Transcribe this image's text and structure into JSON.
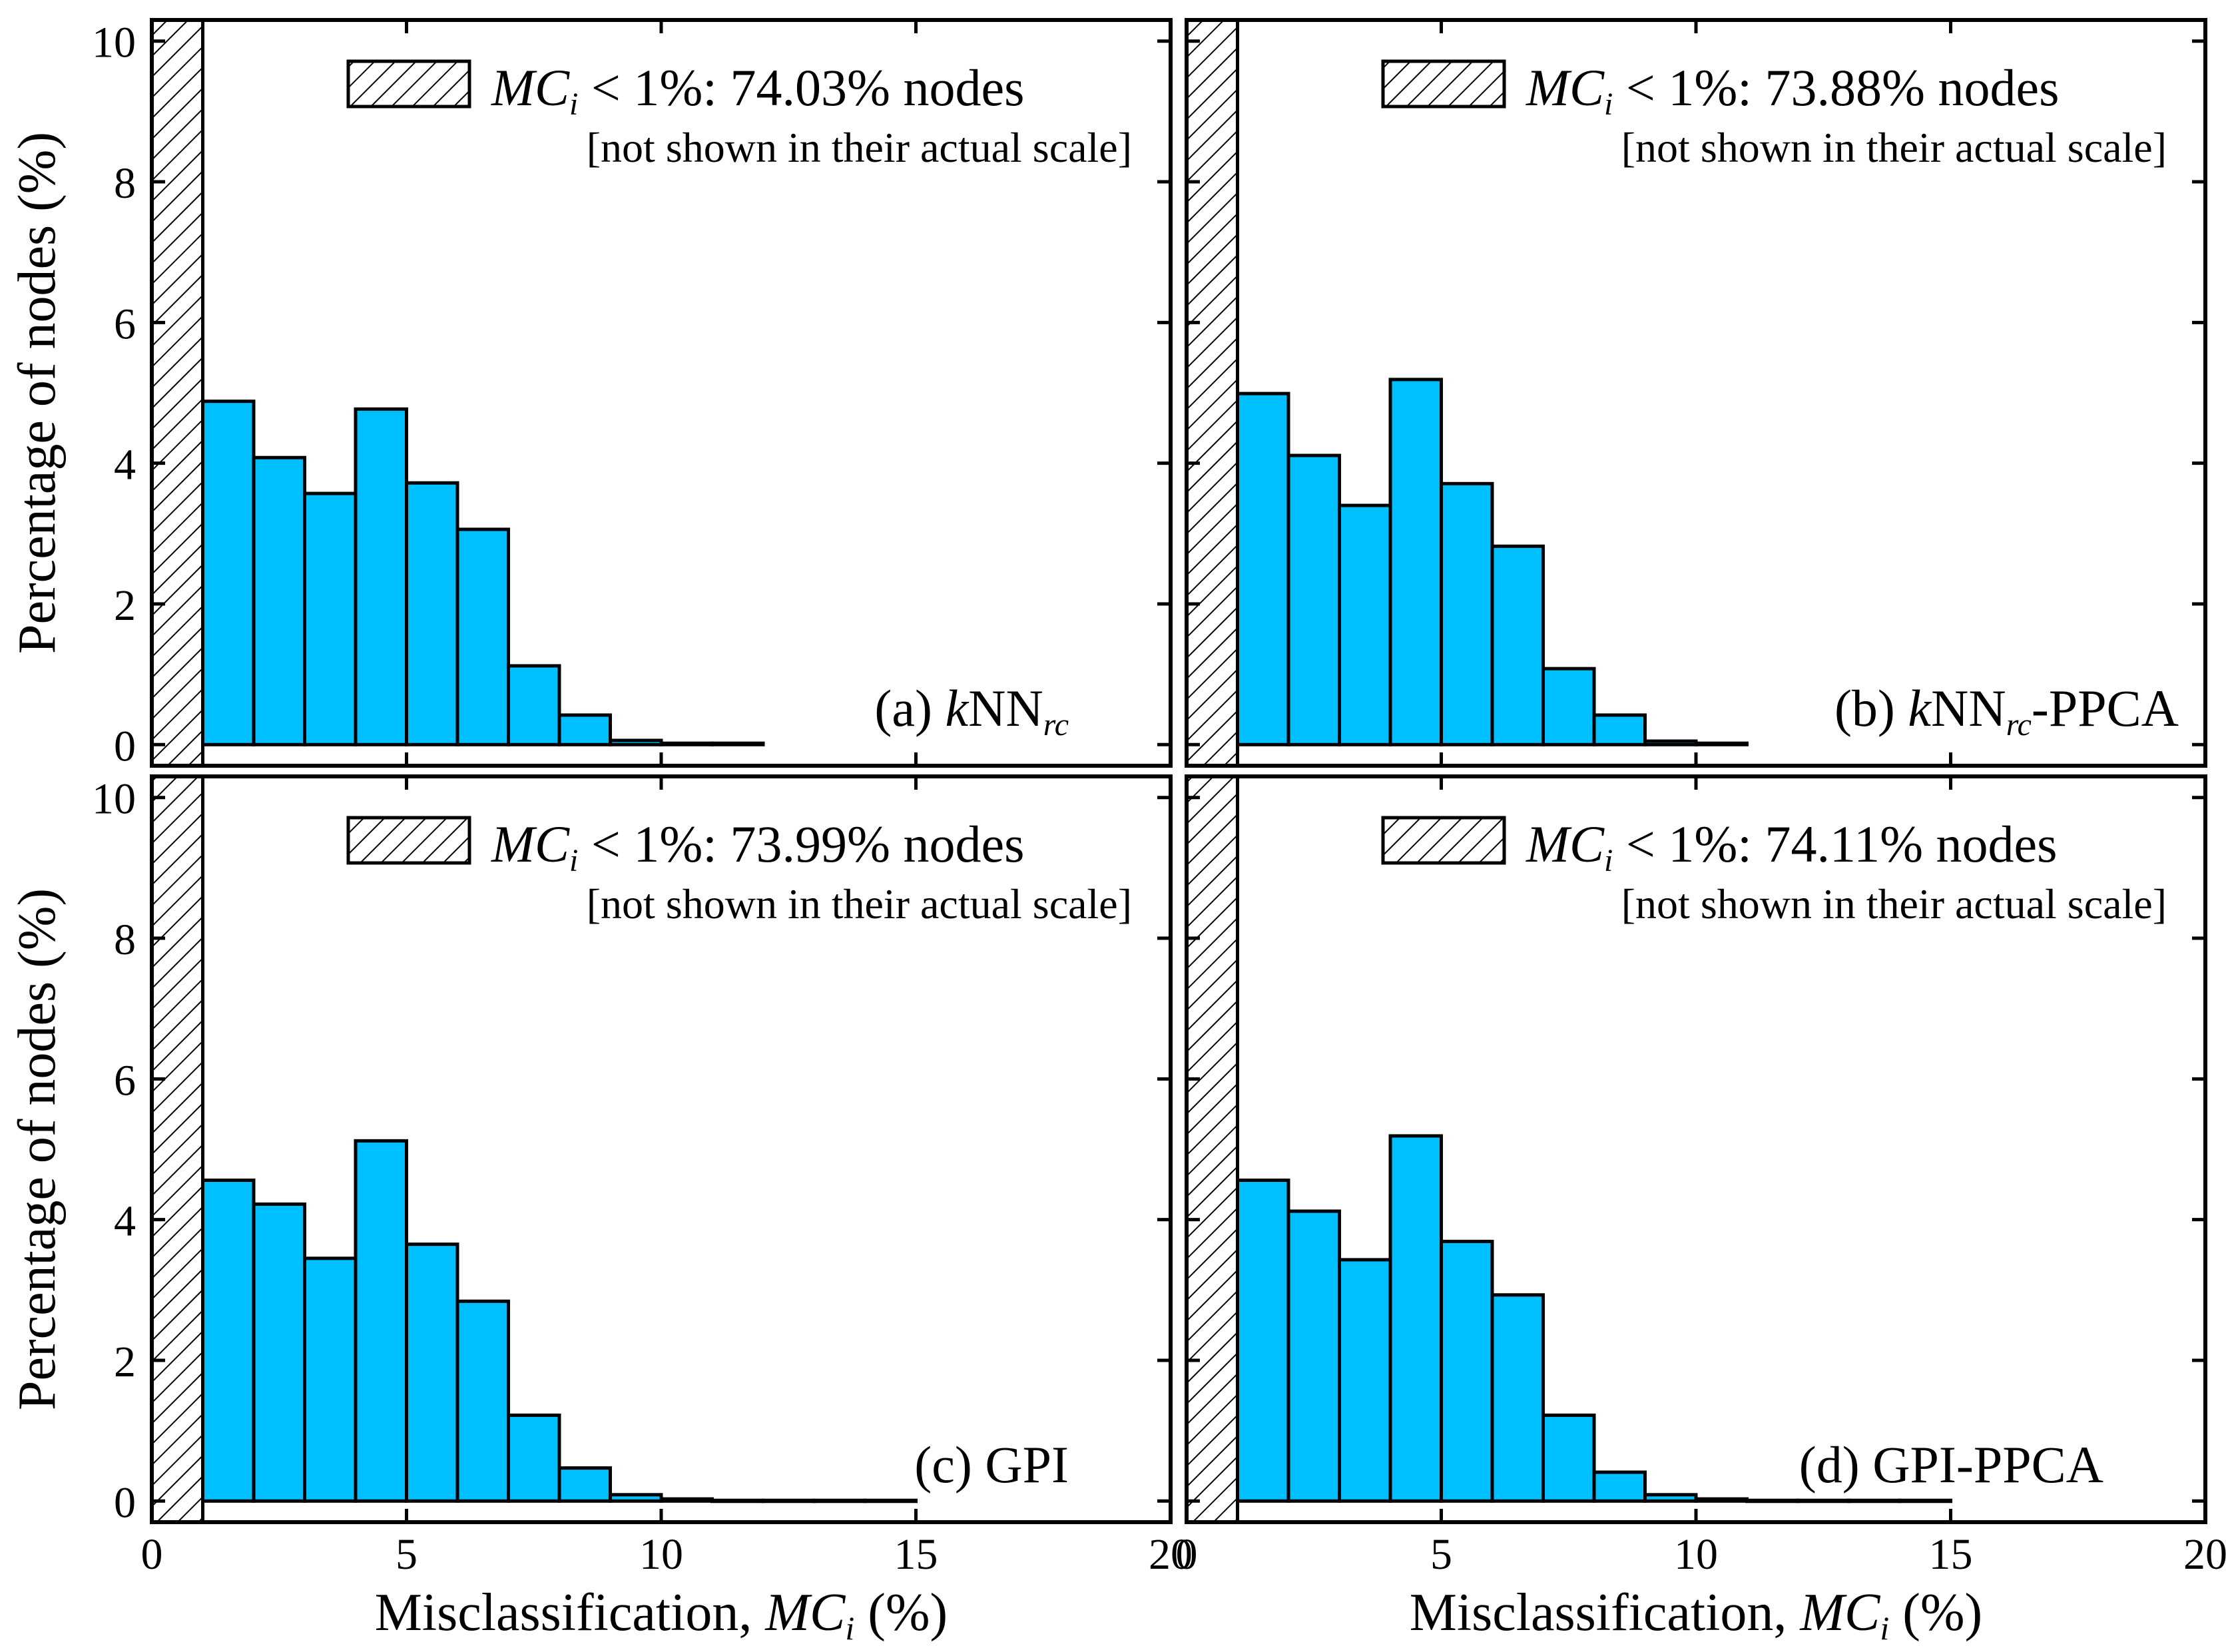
{
  "figure": {
    "ylabel": "Percentage of nodes (%)",
    "xlabel_prefix": "Misclassification, ",
    "xlabel_var": "MC",
    "xlabel_sub": "i",
    "xlabel_suffix": " (%)",
    "legend_note": "[not shown in their actual scale]",
    "legend_prefix_var": "MC",
    "legend_prefix_sub": "i",
    "legend_prefix_rest": " < 1%: ",
    "legend_suffix": " nodes"
  },
  "colors": {
    "bar": "#00bfff",
    "stroke": "#000000",
    "background": "#ffffff"
  },
  "chart_data": [
    {
      "type": "bar",
      "panel": "a",
      "label": {
        "pre": "(a) ",
        "italic": "k",
        "main": "NN",
        "sub": "rc",
        "post": ""
      },
      "legend_value": "74.03%",
      "hatched_bin": {
        "x": [
          0,
          1
        ],
        "label": "MCi < 1%",
        "value": 74.03
      },
      "bin_edges": [
        1,
        2,
        3,
        4,
        5,
        6,
        7,
        8,
        9,
        10,
        11,
        12,
        13,
        14,
        15,
        16,
        17,
        18,
        19,
        20
      ],
      "values": [
        4.88,
        4.08,
        3.57,
        4.77,
        3.72,
        3.06,
        1.12,
        0.42,
        0.06,
        0.02,
        0.02,
        0,
        0,
        0,
        0,
        0,
        0,
        0,
        0
      ],
      "xlim": [
        0,
        20
      ],
      "ylim": [
        -0.3,
        10.3
      ],
      "xticks": [
        0,
        5,
        10,
        15,
        20
      ],
      "yticks": [
        0,
        2,
        4,
        6,
        8,
        10
      ]
    },
    {
      "type": "bar",
      "panel": "b",
      "label": {
        "pre": "(b) ",
        "italic": "k",
        "main": "NN",
        "sub": "rc",
        "post": "-PPCA"
      },
      "legend_value": "73.88%",
      "hatched_bin": {
        "x": [
          0,
          1
        ],
        "label": "MCi < 1%",
        "value": 73.88
      },
      "bin_edges": [
        1,
        2,
        3,
        4,
        5,
        6,
        7,
        8,
        9,
        10,
        11,
        12,
        13,
        14,
        15,
        16,
        17,
        18,
        19,
        20
      ],
      "values": [
        4.99,
        4.11,
        3.4,
        5.19,
        3.71,
        2.82,
        1.08,
        0.42,
        0.05,
        0.02,
        0,
        0,
        0,
        0,
        0,
        0,
        0,
        0,
        0
      ],
      "xlim": [
        0,
        20
      ],
      "ylim": [
        -0.3,
        10.3
      ],
      "xticks": [
        0,
        5,
        10,
        15,
        20
      ],
      "yticks": [
        0,
        2,
        4,
        6,
        8,
        10
      ]
    },
    {
      "type": "bar",
      "panel": "c",
      "label": {
        "pre": "(c) ",
        "italic": "",
        "main": "GPI",
        "sub": "",
        "post": ""
      },
      "legend_value": "73.99%",
      "hatched_bin": {
        "x": [
          0,
          1
        ],
        "label": "MCi < 1%",
        "value": 73.99
      },
      "bin_edges": [
        1,
        2,
        3,
        4,
        5,
        6,
        7,
        8,
        9,
        10,
        11,
        12,
        13,
        14,
        15,
        16,
        17,
        18,
        19,
        20
      ],
      "values": [
        4.56,
        4.22,
        3.45,
        5.12,
        3.65,
        2.84,
        1.22,
        0.47,
        0.09,
        0.03,
        0.01,
        0.01,
        0.01,
        0.01,
        0,
        0,
        0,
        0,
        0
      ],
      "xlim": [
        0,
        20
      ],
      "ylim": [
        -0.3,
        10.3
      ],
      "xticks": [
        0,
        5,
        10,
        15,
        20
      ],
      "yticks": [
        0,
        2,
        4,
        6,
        8,
        10
      ]
    },
    {
      "type": "bar",
      "panel": "d",
      "label": {
        "pre": "(d) ",
        "italic": "",
        "main": "GPI-PPCA",
        "sub": "",
        "post": ""
      },
      "legend_value": "74.11%",
      "hatched_bin": {
        "x": [
          0,
          1
        ],
        "label": "MCi < 1%",
        "value": 74.11
      },
      "bin_edges": [
        1,
        2,
        3,
        4,
        5,
        6,
        7,
        8,
        9,
        10,
        11,
        12,
        13,
        14,
        15,
        16,
        17,
        18,
        19,
        20
      ],
      "values": [
        4.56,
        4.12,
        3.43,
        5.19,
        3.69,
        2.93,
        1.22,
        0.41,
        0.09,
        0.03,
        0.01,
        0.01,
        0.01,
        0.01,
        0,
        0,
        0,
        0,
        0
      ],
      "xlim": [
        0,
        20
      ],
      "ylim": [
        -0.3,
        10.3
      ],
      "xticks": [
        0,
        5,
        10,
        15,
        20
      ],
      "yticks": [
        0,
        2,
        4,
        6,
        8,
        10
      ]
    }
  ]
}
